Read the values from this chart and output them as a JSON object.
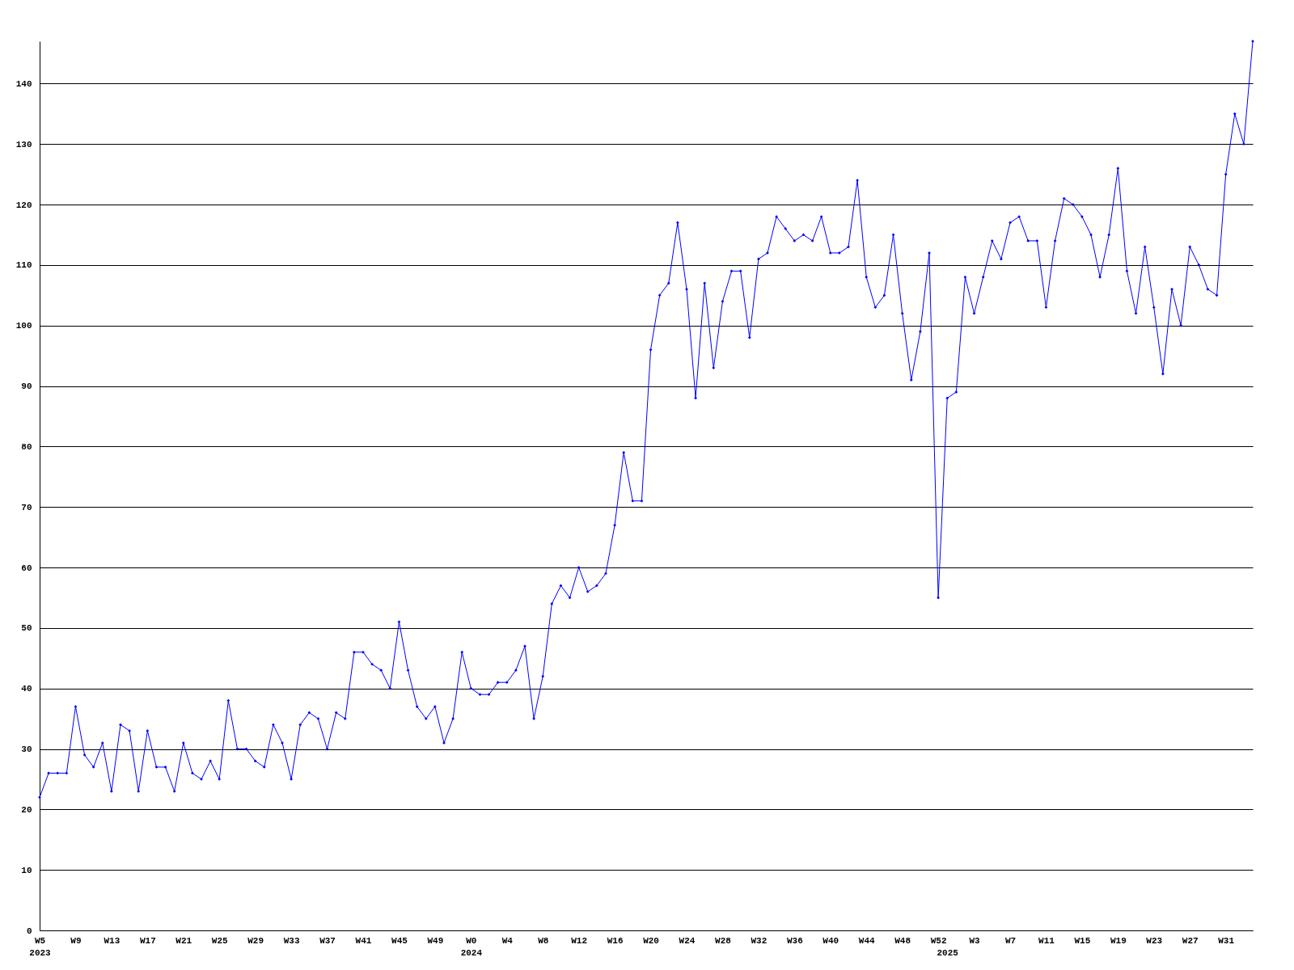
{
  "chart_data": {
    "type": "line",
    "categories": [
      "W5\n2023",
      null,
      null,
      null,
      "W9",
      null,
      null,
      null,
      "W13",
      null,
      null,
      null,
      "W17",
      null,
      null,
      null,
      "W21",
      null,
      null,
      null,
      "W25",
      null,
      null,
      null,
      "W29",
      null,
      null,
      null,
      "W33",
      null,
      null,
      null,
      "W37",
      null,
      null,
      null,
      "W41",
      null,
      null,
      null,
      "W45",
      null,
      null,
      null,
      "W49",
      null,
      null,
      null,
      "W0\n2024",
      null,
      null,
      null,
      "W4",
      null,
      null,
      null,
      "W8",
      null,
      null,
      null,
      "W12",
      null,
      null,
      null,
      "W16",
      null,
      null,
      null,
      "W20",
      null,
      null,
      null,
      "W24",
      null,
      null,
      null,
      "W28",
      null,
      null,
      null,
      "W32",
      null,
      null,
      null,
      "W36",
      null,
      null,
      null,
      "W40",
      null,
      null,
      null,
      "W44",
      null,
      null,
      null,
      "W48",
      null,
      null,
      null,
      "W52",
      "\n2025",
      null,
      null,
      "W3",
      null,
      null,
      null,
      "W7",
      null,
      null,
      null,
      "W11",
      null,
      null,
      null,
      "W15",
      null,
      null,
      null,
      "W19",
      null,
      null,
      null,
      "W23",
      null,
      null,
      null,
      "W27",
      null,
      null,
      null,
      "W31",
      null,
      null,
      null
    ],
    "values": [
      22,
      26,
      26,
      26,
      37,
      29,
      27,
      31,
      23,
      34,
      33,
      23,
      33,
      27,
      27,
      23,
      31,
      26,
      25,
      28,
      25,
      38,
      30,
      30,
      28,
      27,
      34,
      31,
      25,
      34,
      36,
      35,
      30,
      36,
      35,
      46,
      46,
      44,
      43,
      40,
      51,
      43,
      37,
      35,
      37,
      31,
      35,
      46,
      40,
      39,
      39,
      41,
      41,
      43,
      47,
      35,
      42,
      54,
      57,
      55,
      60,
      56,
      57,
      59,
      67,
      79,
      71,
      71,
      96,
      105,
      107,
      117,
      106,
      88,
      107,
      93,
      104,
      109,
      109,
      98,
      111,
      112,
      118,
      116,
      114,
      115,
      114,
      118,
      112,
      112,
      113,
      124,
      108,
      103,
      105,
      115,
      102,
      91,
      99,
      112,
      55,
      88,
      89,
      108,
      102,
      108,
      114,
      111,
      117,
      118,
      114,
      114,
      103,
      114,
      121,
      120,
      118,
      115,
      108,
      115,
      126,
      109,
      102,
      113,
      103,
      92,
      106,
      100,
      113,
      110,
      106,
      105,
      125,
      135,
      130,
      147
    ],
    "color": "#0000ff",
    "ylim": [
      0,
      147
    ],
    "yticks": [
      0,
      10,
      20,
      30,
      40,
      50,
      60,
      70,
      80,
      90,
      100,
      110,
      120,
      130,
      140
    ],
    "grid": "y",
    "marker": "diamond"
  }
}
